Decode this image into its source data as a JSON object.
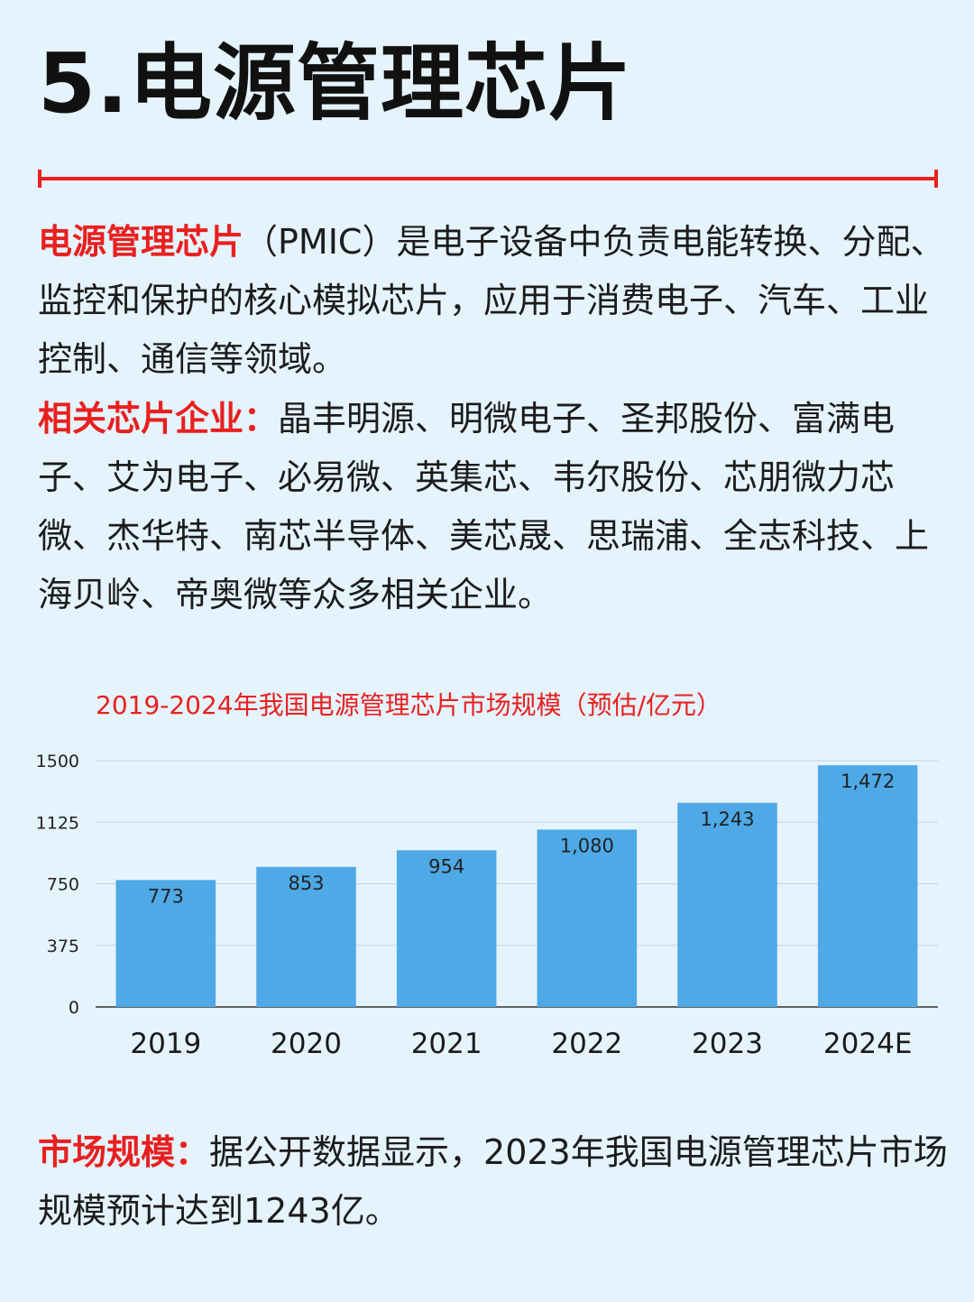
{
  "title": "5.电源管理芯片",
  "intro": {
    "highlight": "电源管理芯片",
    "text": "（PMIC）是电子设备中负责电能转换、分配、监控和保护的核心模拟芯片，应用于消费电子、汽车、工业控制、通信等领域。"
  },
  "companies": {
    "label": "相关芯片企业：",
    "text": "晶丰明源、明微电子、圣邦股份、富满电子、艾为电子、必易微、英集芯、韦尔股份、芯朋微力芯微、杰华特、南芯半导体、美芯晟、思瑞浦、全志科技、上海贝岭、帝奥微等众多相关企业。"
  },
  "market": {
    "label": "市场规模：",
    "text": "据公开数据显示，2023年我国电源管理芯片市场规模预计达到1243亿。"
  },
  "colors": {
    "accent": "#e8201f",
    "bar": "#4ea9e6",
    "background": "#e5f3fc"
  },
  "chart_data": {
    "type": "bar",
    "title": "2019-2024年我国电源管理芯片市场规模（预估/亿元）",
    "categories": [
      "2019",
      "2020",
      "2021",
      "2022",
      "2023",
      "2024E"
    ],
    "values": [
      773,
      853,
      954,
      1080,
      1243,
      1472
    ],
    "value_labels": [
      "773",
      "853",
      "954",
      "1,080",
      "1,243",
      "1,472"
    ],
    "yticks": [
      "0",
      "375",
      "750",
      "1125",
      "1500"
    ],
    "ylim": [
      0,
      1500
    ],
    "grid": true
  }
}
